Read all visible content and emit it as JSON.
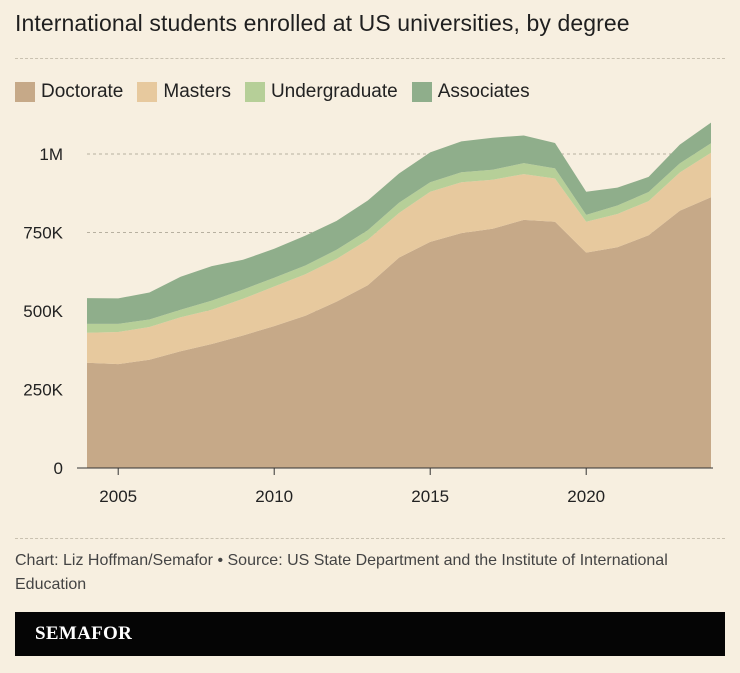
{
  "title": "International students enrolled at US universities, by degree",
  "caption": "Chart: Liz Hoffman/Semafor • Source: US State Department and the Institute of International Education",
  "brand": "SEMAFOR",
  "colors": {
    "background": "#f7efe0",
    "doctorate": "#c6a988",
    "masters": "#e7c99e",
    "undergraduate": "#b6cf98",
    "associates": "#8fae8b",
    "grid": "#b7b0a0",
    "footer": "#050505"
  },
  "legend": [
    {
      "key": "doctorate",
      "label": "Doctorate"
    },
    {
      "key": "masters",
      "label": "Masters"
    },
    {
      "key": "undergraduate",
      "label": "Undergraduate"
    },
    {
      "key": "associates",
      "label": "Associates"
    }
  ],
  "chart_data": {
    "type": "area",
    "stacked": true,
    "title": "International students enrolled at US universities, by degree",
    "xlabel": "",
    "ylabel": "",
    "xlim": [
      2004,
      2024
    ],
    "ylim": [
      0,
      1000000
    ],
    "y_ticks": [
      {
        "value": 0,
        "label": "0"
      },
      {
        "value": 250000,
        "label": "250K"
      },
      {
        "value": 500000,
        "label": "500K"
      },
      {
        "value": 750000,
        "label": "750K"
      },
      {
        "value": 1000000,
        "label": "1M"
      }
    ],
    "x_ticks": [
      {
        "value": 2005,
        "label": "2005"
      },
      {
        "value": 2010,
        "label": "2010"
      },
      {
        "value": 2015,
        "label": "2015"
      },
      {
        "value": 2020,
        "label": "2020"
      }
    ],
    "x": [
      2004,
      2005,
      2006,
      2007,
      2008,
      2009,
      2010,
      2011,
      2012,
      2013,
      2014,
      2015,
      2016,
      2017,
      2018,
      2019,
      2020,
      2021,
      2022,
      2023,
      2024
    ],
    "series": [
      {
        "key": "doctorate",
        "name": "Doctorate",
        "values": [
          335000,
          331000,
          345000,
          372000,
          395000,
          422000,
          452000,
          485000,
          530000,
          582000,
          670000,
          720000,
          748000,
          762000,
          790000,
          784000,
          686000,
          703000,
          741000,
          819000,
          862000
        ]
      },
      {
        "key": "masters",
        "name": "Masters",
        "values": [
          96000,
          102000,
          104000,
          108000,
          109000,
          117000,
          126000,
          132000,
          136000,
          145000,
          142000,
          160000,
          162000,
          156000,
          146000,
          138000,
          98000,
          106000,
          109000,
          122000,
          142000
        ]
      },
      {
        "key": "undergraduate",
        "name": "Undergraduate",
        "values": [
          28000,
          26000,
          24000,
          24000,
          29000,
          29000,
          28000,
          28000,
          29000,
          30000,
          33000,
          30000,
          32000,
          32000,
          35000,
          32000,
          22000,
          27000,
          29000,
          29000,
          30000
        ]
      },
      {
        "key": "associates",
        "name": "Associates",
        "values": [
          82000,
          81000,
          86000,
          105000,
          110000,
          95000,
          92000,
          95000,
          92000,
          95000,
          93000,
          95000,
          98000,
          102000,
          88000,
          81000,
          74000,
          57000,
          48000,
          60000,
          66000
        ]
      }
    ]
  }
}
